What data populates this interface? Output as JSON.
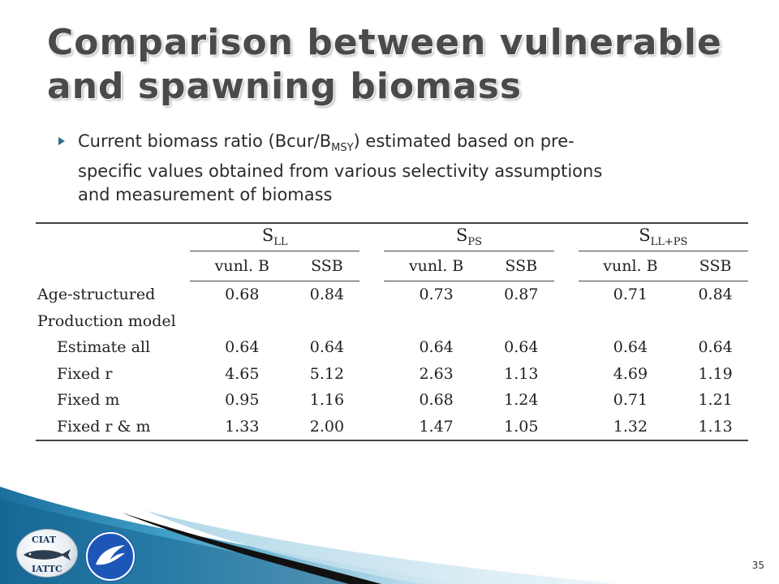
{
  "slide": {
    "title_line1": "Comparison between vulnerable",
    "title_line2": "and spawning biomass",
    "bullet": {
      "pre": "Current biomass ratio (Bcur/B",
      "sub": "MSY",
      "line1_post": ") estimated based on pre-",
      "line2": "specific values obtained from various selectivity assumptions",
      "line3": "and measurement of biomass"
    },
    "page_number": "35"
  },
  "table": {
    "groups": [
      {
        "base": "S",
        "sub": "LL"
      },
      {
        "base": "S",
        "sub": "PS"
      },
      {
        "base": "S",
        "sub": "LL+PS"
      }
    ],
    "subheaders": [
      "vunl. B",
      "SSB"
    ],
    "rows": [
      {
        "label": "Age-structured",
        "values": [
          "0.68",
          "0.84",
          "0.73",
          "0.87",
          "0.71",
          "0.84"
        ]
      },
      {
        "label": "Production model",
        "values": []
      },
      {
        "label": "Estimate all",
        "values": [
          "0.64",
          "0.64",
          "0.64",
          "0.64",
          "0.64",
          "0.64"
        ]
      },
      {
        "label": "Fixed r",
        "values": [
          "4.65",
          "5.12",
          "2.63",
          "1.13",
          "4.69",
          "1.19"
        ]
      },
      {
        "label": "Fixed m",
        "values": [
          "0.95",
          "1.16",
          "0.68",
          "1.24",
          "0.71",
          "1.21"
        ]
      },
      {
        "label": "Fixed r & m",
        "values": [
          "1.33",
          "2.00",
          "1.47",
          "1.05",
          "1.32",
          "1.13"
        ]
      }
    ]
  },
  "logos": {
    "left_top": "CIAT",
    "left_bottom": "IATTC",
    "left_icon": "tuna-fish-icon",
    "right_icon": "noaa-bird-icon"
  },
  "colors": {
    "accent": "#2e6e8e",
    "footer_blue": "#1b6f9e",
    "noaa_blue": "#1e56b8"
  }
}
